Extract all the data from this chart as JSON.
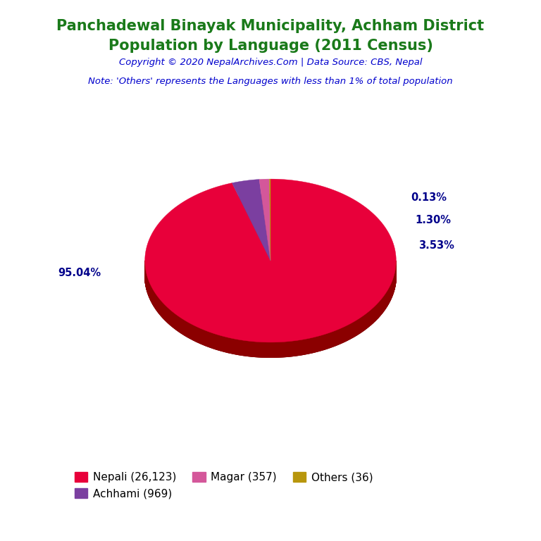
{
  "title_line1": "Panchadewal Binayak Municipality, Achham District",
  "title_line2": "Population by Language (2011 Census)",
  "title_color": "#1a7a1a",
  "copyright_text": "Copyright © 2020 NepalArchives.Com | Data Source: CBS, Nepal",
  "copyright_color": "#0000CD",
  "note_text": "Note: 'Others' represents the Languages with less than 1% of total population",
  "note_color": "#0000CD",
  "values": [
    26123,
    969,
    357,
    36
  ],
  "percentages": [
    "95.04%",
    "3.53%",
    "1.30%",
    "0.13%"
  ],
  "colors": [
    "#E8003A",
    "#7B3FA0",
    "#D4579A",
    "#B8960C"
  ],
  "dark_colors": [
    "#8B0000",
    "#4A1A6A",
    "#8B3060",
    "#6B5500"
  ],
  "legend_labels": [
    "Nepali (26,123)",
    "Achhami (969)",
    "Magar (357)",
    "Others (36)"
  ],
  "pct_label_color": "#00008B",
  "startangle": 90,
  "depth": 0.12
}
